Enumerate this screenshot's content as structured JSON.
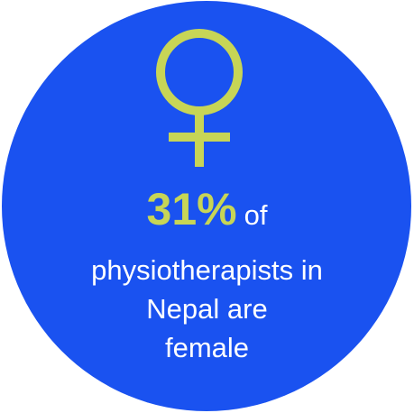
{
  "colors": {
    "circle_background": "#1a52f0",
    "accent": "#c7d556",
    "text": "#ffffff"
  },
  "icon": "female-symbol-icon",
  "stat": {
    "value": "31%",
    "suffix": "of"
  },
  "caption_lines": [
    "physiotherapists in",
    "Nepal are",
    "female"
  ]
}
